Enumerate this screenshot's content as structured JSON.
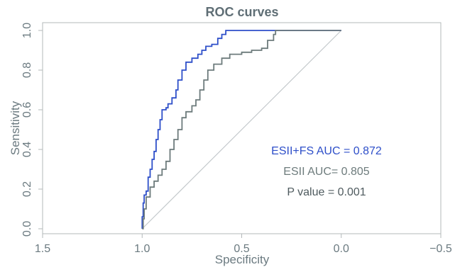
{
  "chart_data": {
    "type": "line",
    "title": "ROC curves",
    "xlabel": "Specificity",
    "ylabel": "Sensitivity",
    "xlim": [
      1.5,
      -0.5
    ],
    "ylim": [
      0.0,
      1.0
    ],
    "x_axis_reversed": true,
    "x_ticks": [
      1.5,
      1.0,
      0.5,
      0.0,
      -0.5
    ],
    "x_tick_labels": [
      "1.5",
      "1.0",
      "0.5",
      "0.0",
      "−0.5"
    ],
    "y_ticks": [
      0.0,
      0.2,
      0.4,
      0.6,
      0.8,
      1.0
    ],
    "y_tick_labels": [
      "0.0",
      "0.2",
      "0.4",
      "0.6",
      "0.8",
      "1.0"
    ],
    "grid": false,
    "reference_line": {
      "from": [
        1.0,
        0.0
      ],
      "to": [
        0.0,
        1.0
      ],
      "color": "#c4c9cc"
    },
    "series": [
      {
        "color": "#2e4fc9",
        "points": [
          [
            1.0,
            0.0
          ],
          [
            1.0,
            0.06
          ],
          [
            0.995,
            0.13
          ],
          [
            0.99,
            0.17
          ],
          [
            0.98,
            0.19
          ],
          [
            0.97,
            0.26
          ],
          [
            0.96,
            0.3
          ],
          [
            0.95,
            0.35
          ],
          [
            0.94,
            0.39
          ],
          [
            0.93,
            0.45
          ],
          [
            0.92,
            0.5
          ],
          [
            0.91,
            0.55
          ],
          [
            0.9,
            0.6
          ],
          [
            0.88,
            0.61
          ],
          [
            0.87,
            0.63
          ],
          [
            0.85,
            0.66
          ],
          [
            0.83,
            0.7
          ],
          [
            0.82,
            0.75
          ],
          [
            0.8,
            0.8
          ],
          [
            0.78,
            0.84
          ],
          [
            0.75,
            0.86
          ],
          [
            0.72,
            0.88
          ],
          [
            0.7,
            0.9
          ],
          [
            0.68,
            0.92
          ],
          [
            0.65,
            0.93
          ],
          [
            0.62,
            0.96
          ],
          [
            0.6,
            0.98
          ],
          [
            0.58,
            1.0
          ],
          [
            0.4,
            1.0
          ],
          [
            0.0,
            1.0
          ]
        ]
      },
      {
        "color": "#6d7b7c",
        "points": [
          [
            1.0,
            0.0
          ],
          [
            0.995,
            0.05
          ],
          [
            0.99,
            0.1
          ],
          [
            0.98,
            0.16
          ],
          [
            0.96,
            0.21
          ],
          [
            0.94,
            0.24
          ],
          [
            0.92,
            0.27
          ],
          [
            0.9,
            0.3
          ],
          [
            0.88,
            0.34
          ],
          [
            0.86,
            0.4
          ],
          [
            0.84,
            0.45
          ],
          [
            0.82,
            0.5
          ],
          [
            0.8,
            0.56
          ],
          [
            0.78,
            0.59
          ],
          [
            0.75,
            0.62
          ],
          [
            0.73,
            0.65
          ],
          [
            0.71,
            0.7
          ],
          [
            0.69,
            0.75
          ],
          [
            0.67,
            0.8
          ],
          [
            0.64,
            0.83
          ],
          [
            0.6,
            0.86
          ],
          [
            0.56,
            0.88
          ],
          [
            0.5,
            0.89
          ],
          [
            0.45,
            0.9
          ],
          [
            0.4,
            0.91
          ],
          [
            0.37,
            0.95
          ],
          [
            0.34,
            0.98
          ],
          [
            0.33,
            1.0
          ],
          [
            0.0,
            1.0
          ]
        ]
      }
    ],
    "annotations": [
      {
        "text": "ESII+FS AUC = 0.872",
        "color": "#2e4fc9"
      },
      {
        "text": "ESII AUC= 0.805",
        "color": "#6d7b7c"
      },
      {
        "text": "P value = 0.001",
        "color": "#4f5b5f"
      }
    ]
  }
}
